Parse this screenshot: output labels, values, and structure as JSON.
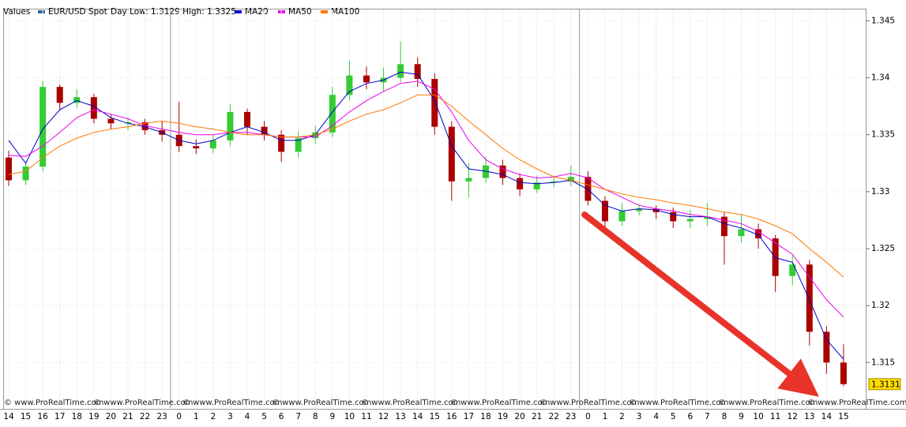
{
  "chart_data": {
    "type": "candlestick",
    "title": "Values",
    "day_range": "Day Low: 1.3129 High: 1.3325",
    "watermark": "© www.ProRealTime.com",
    "categories": [
      "14",
      "15",
      "16",
      "17",
      "18",
      "19",
      "20",
      "21",
      "22",
      "23",
      "0",
      "1",
      "2",
      "3",
      "4",
      "5",
      "6",
      "7",
      "8",
      "9",
      "10",
      "11",
      "12",
      "13",
      "14",
      "15",
      "16",
      "17",
      "18",
      "19",
      "20",
      "21",
      "22",
      "23",
      "0",
      "1",
      "2",
      "3",
      "4",
      "5",
      "6",
      "7",
      "8",
      "9",
      "10",
      "11",
      "12",
      "13",
      "14",
      "15"
    ],
    "ylim": [
      1.311,
      1.346
    ],
    "yticks": [
      1.315,
      1.32,
      1.325,
      1.33,
      1.335,
      1.34,
      1.345
    ],
    "grid": true,
    "up_color": "#33cc33",
    "down_color": "#aa0000",
    "series": [
      {
        "name": "EUR/USD Spot",
        "type": "candlestick",
        "color": "#336699",
        "open": [
          1.333,
          1.331,
          1.3322,
          1.3392,
          1.3378,
          1.3383,
          1.3364,
          1.336,
          1.3361,
          1.3354,
          1.335,
          1.334,
          1.3338,
          1.3345,
          1.337,
          1.3357,
          1.335,
          1.3335,
          1.3347,
          1.3352,
          1.3385,
          1.3402,
          1.3396,
          1.34,
          1.3412,
          1.3399,
          1.3357,
          1.3309,
          1.3312,
          1.3323,
          1.3312,
          1.3302,
          1.3308,
          1.3309,
          1.3313,
          1.3292,
          1.3274,
          1.3283,
          1.3285,
          1.3282,
          1.3274,
          1.3276,
          1.3278,
          1.3261,
          1.3267,
          1.3259,
          1.3226,
          1.3236,
          1.3177,
          1.315
        ],
        "high": [
          1.3336,
          1.3326,
          1.3397,
          1.3394,
          1.339,
          1.3386,
          1.3368,
          1.3365,
          1.3364,
          1.3362,
          1.3379,
          1.3346,
          1.335,
          1.3377,
          1.3373,
          1.3362,
          1.3354,
          1.3353,
          1.3358,
          1.3392,
          1.3415,
          1.341,
          1.3409,
          1.3432,
          1.3418,
          1.3404,
          1.3362,
          1.3325,
          1.3331,
          1.3328,
          1.3316,
          1.3314,
          1.3314,
          1.3323,
          1.3318,
          1.3296,
          1.329,
          1.3289,
          1.3288,
          1.3286,
          1.3284,
          1.329,
          1.3282,
          1.328,
          1.3272,
          1.3262,
          1.3244,
          1.324,
          1.3182,
          1.3166
        ],
        "low": [
          1.3305,
          1.3306,
          1.3318,
          1.3372,
          1.3374,
          1.336,
          1.3355,
          1.3354,
          1.335,
          1.3344,
          1.3335,
          1.3333,
          1.3334,
          1.334,
          1.335,
          1.3345,
          1.3326,
          1.333,
          1.3342,
          1.3348,
          1.338,
          1.339,
          1.3388,
          1.3396,
          1.3392,
          1.335,
          1.3292,
          1.3295,
          1.3308,
          1.3306,
          1.3296,
          1.3299,
          1.3304,
          1.3305,
          1.3288,
          1.3268,
          1.327,
          1.3279,
          1.3276,
          1.3268,
          1.3268,
          1.327,
          1.3236,
          1.3255,
          1.325,
          1.3212,
          1.3218,
          1.3165,
          1.314,
          1.3129
        ],
        "close": [
          1.331,
          1.3322,
          1.3392,
          1.3378,
          1.3383,
          1.3364,
          1.336,
          1.3361,
          1.3354,
          1.335,
          1.334,
          1.3338,
          1.3345,
          1.337,
          1.3357,
          1.335,
          1.3335,
          1.3347,
          1.3352,
          1.3385,
          1.3402,
          1.3396,
          1.34,
          1.3412,
          1.3399,
          1.3357,
          1.3309,
          1.3312,
          1.3323,
          1.3312,
          1.3302,
          1.3308,
          1.3309,
          1.3313,
          1.3292,
          1.3274,
          1.3283,
          1.3285,
          1.3282,
          1.3274,
          1.3276,
          1.3278,
          1.3261,
          1.3267,
          1.3259,
          1.3226,
          1.3236,
          1.3177,
          1.315,
          1.3131
        ]
      },
      {
        "name": "MA20",
        "type": "line",
        "color": "#0000cc",
        "values": [
          1.3345,
          1.3325,
          1.3355,
          1.3372,
          1.338,
          1.3375,
          1.3365,
          1.336,
          1.3357,
          1.3352,
          1.3345,
          1.3342,
          1.3345,
          1.3352,
          1.3357,
          1.3352,
          1.3345,
          1.3345,
          1.335,
          1.337,
          1.3388,
          1.3395,
          1.3398,
          1.3405,
          1.3403,
          1.338,
          1.334,
          1.332,
          1.3318,
          1.3315,
          1.3308,
          1.3307,
          1.3308,
          1.331,
          1.3302,
          1.3288,
          1.3283,
          1.3285,
          1.3284,
          1.328,
          1.3278,
          1.3278,
          1.3272,
          1.3268,
          1.3262,
          1.3242,
          1.3238,
          1.3205,
          1.317,
          1.3153
        ]
      },
      {
        "name": "MA50",
        "type": "line",
        "color": "#ee00ee",
        "values": [
          1.3332,
          1.3331,
          1.334,
          1.3352,
          1.3365,
          1.3372,
          1.3368,
          1.3364,
          1.3358,
          1.3355,
          1.3352,
          1.335,
          1.335,
          1.3352,
          1.3352,
          1.335,
          1.3348,
          1.3348,
          1.3348,
          1.3358,
          1.337,
          1.338,
          1.3388,
          1.3395,
          1.3397,
          1.339,
          1.337,
          1.3345,
          1.3328,
          1.332,
          1.3315,
          1.3312,
          1.3313,
          1.3316,
          1.3312,
          1.3302,
          1.3295,
          1.3288,
          1.3285,
          1.3283,
          1.328,
          1.3278,
          1.3275,
          1.3272,
          1.3265,
          1.3255,
          1.3245,
          1.3225,
          1.3205,
          1.319
        ]
      },
      {
        "name": "MA100",
        "type": "line",
        "color": "#ff7700",
        "values": [
          1.3315,
          1.3318,
          1.333,
          1.334,
          1.3347,
          1.3352,
          1.3355,
          1.3357,
          1.336,
          1.3362,
          1.336,
          1.3357,
          1.3355,
          1.3352,
          1.335,
          1.335,
          1.3348,
          1.3348,
          1.335,
          1.3355,
          1.3362,
          1.3368,
          1.3372,
          1.3378,
          1.3385,
          1.3385,
          1.3375,
          1.3362,
          1.335,
          1.3338,
          1.3328,
          1.332,
          1.3313,
          1.331,
          1.3306,
          1.3302,
          1.3298,
          1.3295,
          1.3293,
          1.329,
          1.3288,
          1.3285,
          1.3282,
          1.328,
          1.3276,
          1.327,
          1.3263,
          1.325,
          1.3238,
          1.3225
        ]
      }
    ]
  }
}
